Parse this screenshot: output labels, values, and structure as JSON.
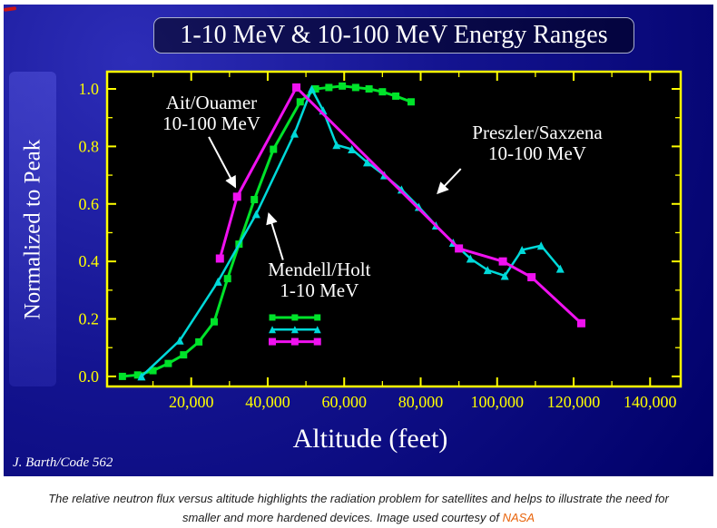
{
  "slide": {
    "title": "1-10 MeV & 10-100 MeV Energy Ranges",
    "credit": "J. Barth/Code 562"
  },
  "caption": {
    "line1": "The relative neutron flux versus altitude highlights the radiation problem for satellites and helps to illustrate the need for",
    "line2_prefix": "smaller and more hardened devices. Image used courtesy of ",
    "link_text": "NASA",
    "link_color": "#e8630a"
  },
  "chart_data": {
    "type": "line",
    "title": "1-10 MeV & 10-100 MeV Energy Ranges",
    "xlabel": "Altitude (feet)",
    "ylabel": "Normalized to Peak",
    "xlim": [
      -2000,
      148000
    ],
    "ylim": [
      -0.035,
      1.06
    ],
    "x_ticks": [
      20000,
      40000,
      60000,
      80000,
      100000,
      120000,
      140000
    ],
    "x_tick_labels": [
      "20,000",
      "40,000",
      "60,000",
      "80,000",
      "100,000",
      "120,000",
      "140,000"
    ],
    "x_minor_step": 10000,
    "y_ticks": [
      0.0,
      0.2,
      0.4,
      0.6,
      0.8,
      1.0
    ],
    "y_tick_labels": [
      "0.0",
      "0.2",
      "0.4",
      "0.6",
      "0.8",
      "1.0"
    ],
    "axis_color": "#ffff00",
    "plot_bg": "#000000",
    "annotation_color": "#ffffff",
    "legend": {
      "x_range": [
        41200,
        53000
      ],
      "rows": [
        {
          "series": 0,
          "y": 0.205
        },
        {
          "series": 1,
          "y": 0.163
        },
        {
          "series": 2,
          "y": 0.121
        }
      ]
    },
    "series": [
      {
        "name": "Mendell/Holt 1-10 MeV",
        "color": "#00e32a",
        "marker": "square",
        "marker_size": 8,
        "line_width": 3,
        "points": [
          [
            2000,
            0.0
          ],
          [
            6000,
            0.005
          ],
          [
            10000,
            0.02
          ],
          [
            14000,
            0.045
          ],
          [
            18000,
            0.075
          ],
          [
            22000,
            0.12
          ],
          [
            26000,
            0.19
          ],
          [
            29500,
            0.34
          ],
          [
            32500,
            0.46
          ],
          [
            36500,
            0.615
          ],
          [
            41500,
            0.79
          ],
          [
            48500,
            0.955
          ],
          [
            52500,
            1.0
          ],
          [
            56000,
            1.005
          ],
          [
            59500,
            1.01
          ],
          [
            63000,
            1.005
          ],
          [
            66500,
            1.0
          ],
          [
            70000,
            0.99
          ],
          [
            73500,
            0.975
          ],
          [
            77500,
            0.955
          ]
        ]
      },
      {
        "name": "Preszler/Saxzena 10-100 MeV",
        "color": "#00d9d9",
        "marker": "triangle",
        "marker_size": 9,
        "line_width": 2.5,
        "points": [
          [
            7000,
            0.0
          ],
          [
            17000,
            0.125
          ],
          [
            27000,
            0.33
          ],
          [
            37000,
            0.565
          ],
          [
            47000,
            0.845
          ],
          [
            51500,
            1.0
          ],
          [
            54500,
            0.925
          ],
          [
            58000,
            0.805
          ],
          [
            62000,
            0.79
          ],
          [
            66000,
            0.745
          ],
          [
            70500,
            0.7
          ],
          [
            75000,
            0.65
          ],
          [
            79500,
            0.59
          ],
          [
            84000,
            0.525
          ],
          [
            88500,
            0.465
          ],
          [
            93000,
            0.41
          ],
          [
            97500,
            0.37
          ],
          [
            102000,
            0.35
          ],
          [
            106500,
            0.44
          ],
          [
            111500,
            0.455
          ],
          [
            116500,
            0.375
          ]
        ]
      },
      {
        "name": "Ait/Ouamer 10-100 MeV",
        "color": "#f011f0",
        "marker": "square",
        "marker_size": 9,
        "line_width": 3,
        "points": [
          [
            27500,
            0.41
          ],
          [
            32000,
            0.625
          ],
          [
            47500,
            1.005
          ],
          [
            90000,
            0.445
          ],
          [
            101500,
            0.4
          ],
          [
            109000,
            0.345
          ],
          [
            122000,
            0.185
          ]
        ]
      }
    ],
    "annotations": [
      {
        "lines": [
          "Ait/Ouamer",
          "10-100 MeV"
        ],
        "x": 25300,
        "y": 0.915,
        "arrow_from": [
          24600,
          0.833
        ],
        "arrow_to": [
          31500,
          0.66
        ]
      },
      {
        "lines": [
          "Preszler/Saxzena",
          "10-100 MeV"
        ],
        "x": 110500,
        "y": 0.811,
        "arrow_from": [
          90500,
          0.722
        ],
        "arrow_to": [
          84500,
          0.638
        ]
      },
      {
        "lines": [
          "Mendell/Holt",
          "1-10 MeV"
        ],
        "x": 53500,
        "y": 0.334,
        "arrow_from": [
          44000,
          0.405
        ],
        "arrow_to": [
          40300,
          0.565
        ]
      }
    ]
  }
}
